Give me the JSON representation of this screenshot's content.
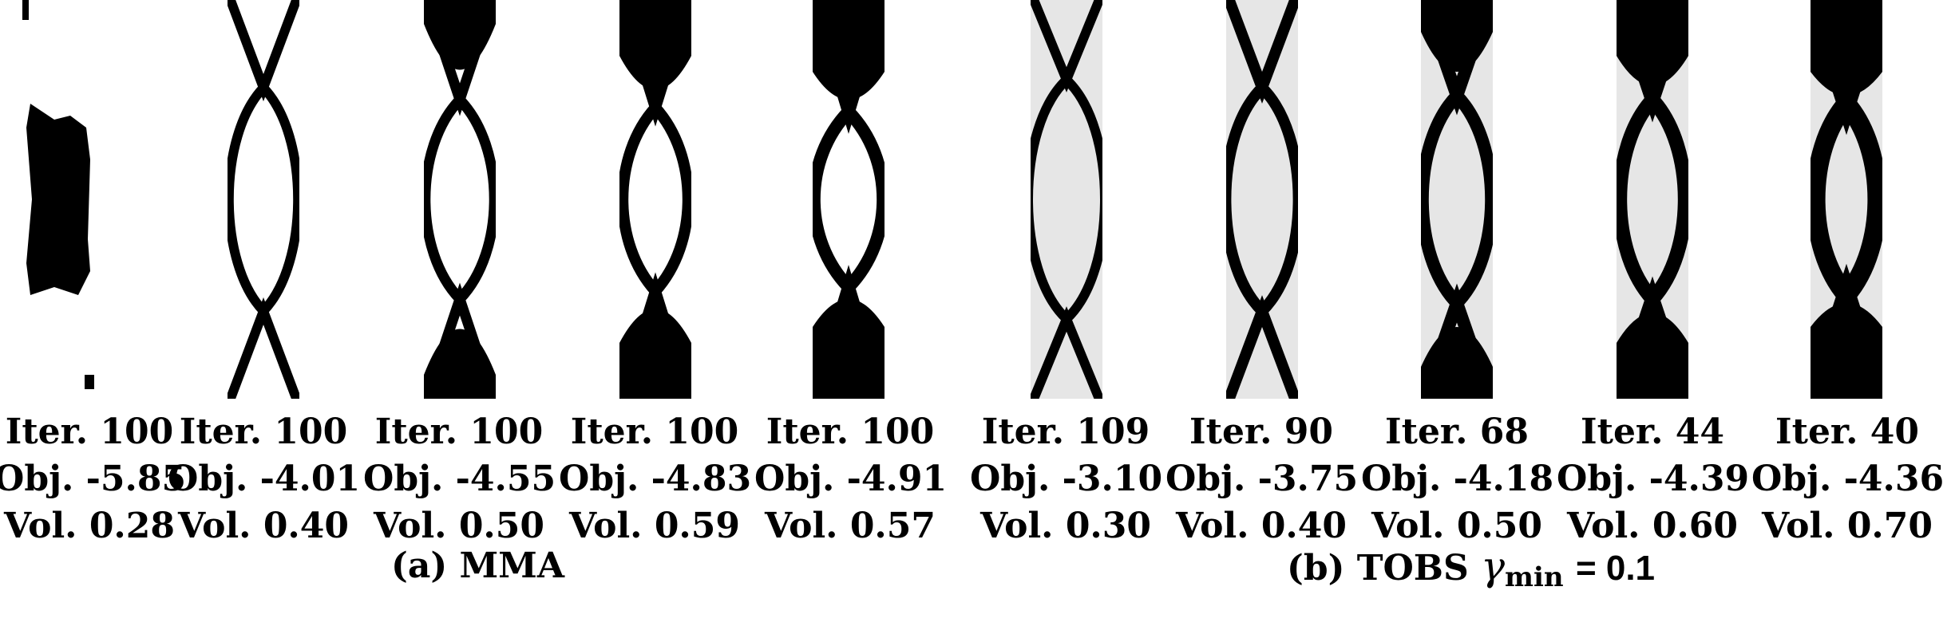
{
  "figure": {
    "panels": [
      {
        "group": "mma",
        "iter": "Iter. 100",
        "obj": "Obj. -5.85",
        "vol": "Vol. 0.28"
      },
      {
        "group": "mma",
        "iter": "Iter. 100",
        "obj": "Obj. -4.01",
        "vol": "Vol. 0.40"
      },
      {
        "group": "mma",
        "iter": "Iter. 100",
        "obj": "Obj. -4.55",
        "vol": "Vol. 0.50"
      },
      {
        "group": "mma",
        "iter": "Iter. 100",
        "obj": "Obj. -4.83",
        "vol": "Vol. 0.59"
      },
      {
        "group": "mma",
        "iter": "Iter. 100",
        "obj": "Obj. -4.91",
        "vol": "Vol. 0.57"
      },
      {
        "group": "tobs",
        "iter": "Iter. 109",
        "obj": "Obj. -3.10",
        "vol": "Vol. 0.30"
      },
      {
        "group": "tobs",
        "iter": "Iter. 90",
        "obj": "Obj. -3.75",
        "vol": "Vol. 0.40"
      },
      {
        "group": "tobs",
        "iter": "Iter. 68",
        "obj": "Obj. -4.18",
        "vol": "Vol. 0.50"
      },
      {
        "group": "tobs",
        "iter": "Iter. 44",
        "obj": "Obj. -4.39",
        "vol": "Vol. 0.60"
      },
      {
        "group": "tobs",
        "iter": "Iter. 40",
        "obj": "Obj. -4.36",
        "vol": "Vol. 0.70"
      }
    ],
    "group_a": {
      "label": "(a) MMA"
    },
    "group_b": {
      "label_prefix": "(b) TOBS",
      "gamma": "γ",
      "subscript": "min",
      "equals": "= 0.1"
    }
  },
  "colors": {
    "solid": "#000000",
    "void_mma": "#ffffff",
    "void_tobs": "#e6e6e6"
  }
}
